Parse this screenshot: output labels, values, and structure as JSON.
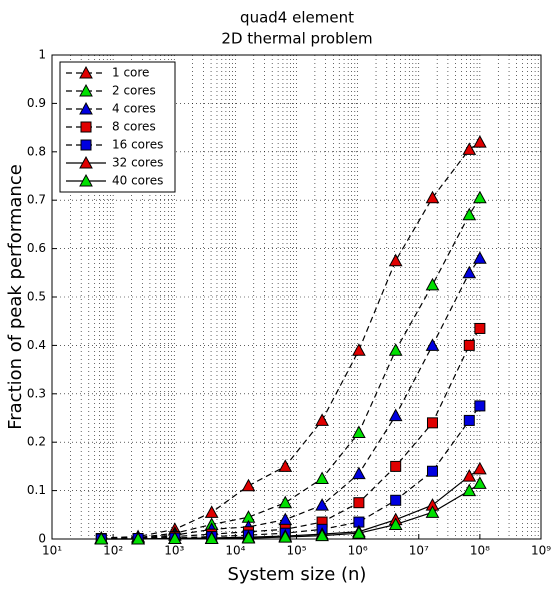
{
  "chart_data": {
    "type": "line",
    "title": [
      "quad4 element",
      "2D thermal problem"
    ],
    "x_label": "System size (n)",
    "y_label": "Fraction of peak performance",
    "x": [
      64,
      256,
      1024,
      4096,
      16384,
      65536,
      262144,
      1048576,
      4194304,
      16777216,
      67108864,
      100000000
    ],
    "series": [
      {
        "name": "1 core",
        "color": "#e00000",
        "marker": "triangle",
        "linestyle": "dashed",
        "values": [
          0.002,
          0.005,
          0.02,
          0.055,
          0.11,
          0.15,
          0.245,
          0.39,
          0.575,
          0.705,
          0.805,
          0.82
        ]
      },
      {
        "name": "2 cores",
        "color": "#00e000",
        "marker": "triangle",
        "linestyle": "dashed",
        "values": [
          0.001,
          0.003,
          0.012,
          0.03,
          0.045,
          0.075,
          0.125,
          0.22,
          0.39,
          0.525,
          0.67,
          0.705
        ]
      },
      {
        "name": "4 cores",
        "color": "#0000e0",
        "marker": "triangle",
        "linestyle": "dashed",
        "values": [
          0.001,
          0.002,
          0.008,
          0.02,
          0.025,
          0.04,
          0.07,
          0.135,
          0.255,
          0.4,
          0.55,
          0.58
        ]
      },
      {
        "name": "8 cores",
        "color": "#e00000",
        "marker": "square",
        "linestyle": "dashed",
        "values": [
          0.001,
          0.001,
          0.005,
          0.01,
          0.015,
          0.02,
          0.035,
          0.075,
          0.15,
          0.24,
          0.4,
          0.435
        ]
      },
      {
        "name": "16 cores",
        "color": "#0000e0",
        "marker": "square",
        "linestyle": "dashed",
        "values": [
          0,
          0.001,
          0.002,
          0.005,
          0.008,
          0.012,
          0.02,
          0.035,
          0.08,
          0.14,
          0.245,
          0.275
        ]
      },
      {
        "name": "32 cores",
        "color": "#e00000",
        "marker": "triangle",
        "linestyle": "solid",
        "values": [
          0,
          0,
          0.001,
          0.002,
          0.004,
          0.006,
          0.01,
          0.015,
          0.04,
          0.07,
          0.13,
          0.145
        ]
      },
      {
        "name": "40 cores",
        "color": "#00e000",
        "marker": "triangle",
        "linestyle": "solid",
        "values": [
          0,
          0,
          0.001,
          0.001,
          0.002,
          0.004,
          0.007,
          0.012,
          0.03,
          0.055,
          0.1,
          0.115
        ]
      }
    ],
    "x_scale": "log",
    "xlim": [
      10,
      1000000000
    ],
    "xticks": [
      {
        "value": 10,
        "label": "10¹"
      },
      {
        "value": 100,
        "label": "10²"
      },
      {
        "value": 1000,
        "label": "10³"
      },
      {
        "value": 10000,
        "label": "10⁴"
      },
      {
        "value": 100000,
        "label": "10⁵"
      },
      {
        "value": 1000000,
        "label": "10⁶"
      },
      {
        "value": 10000000,
        "label": "10⁷"
      },
      {
        "value": 100000000,
        "label": "10⁸"
      },
      {
        "value": 1000000000,
        "label": "10⁹"
      }
    ],
    "ylim": [
      0,
      1
    ],
    "yticks": [
      0,
      0.1,
      0.2,
      0.3,
      0.4,
      0.5,
      0.6,
      0.7,
      0.8,
      0.9,
      1
    ],
    "grid": true,
    "minor_grid": true,
    "legend": "upper-left"
  }
}
